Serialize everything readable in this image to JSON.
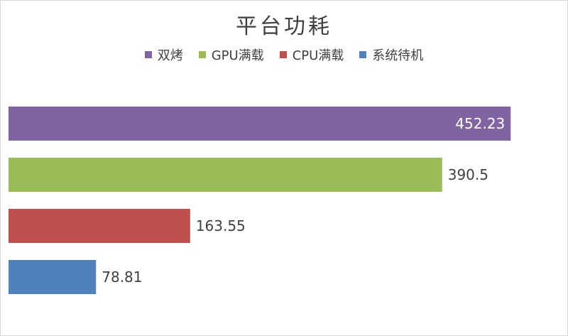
{
  "chart_data": {
    "type": "bar",
    "orientation": "horizontal",
    "title": "平台功耗",
    "categories": [
      "双烤",
      "GPU满载",
      "CPU满载",
      "系统待机"
    ],
    "values": [
      452.23,
      390.5,
      163.55,
      78.81
    ],
    "value_labels": [
      "452.23",
      "390.5",
      "163.55",
      "78.81"
    ],
    "colors": [
      "#8064A2",
      "#9BBB59",
      "#C0504D",
      "#4F81BD"
    ],
    "legend": [
      {
        "name": "双烤",
        "color": "#8064A2"
      },
      {
        "name": "GPU满载",
        "color": "#9BBB59"
      },
      {
        "name": "CPU满载",
        "color": "#C0504D"
      },
      {
        "name": "系统待机",
        "color": "#4F81BD"
      }
    ],
    "legend_position": "top",
    "xlim": [
      0,
      500
    ],
    "grid": false,
    "axes_visible": false
  }
}
